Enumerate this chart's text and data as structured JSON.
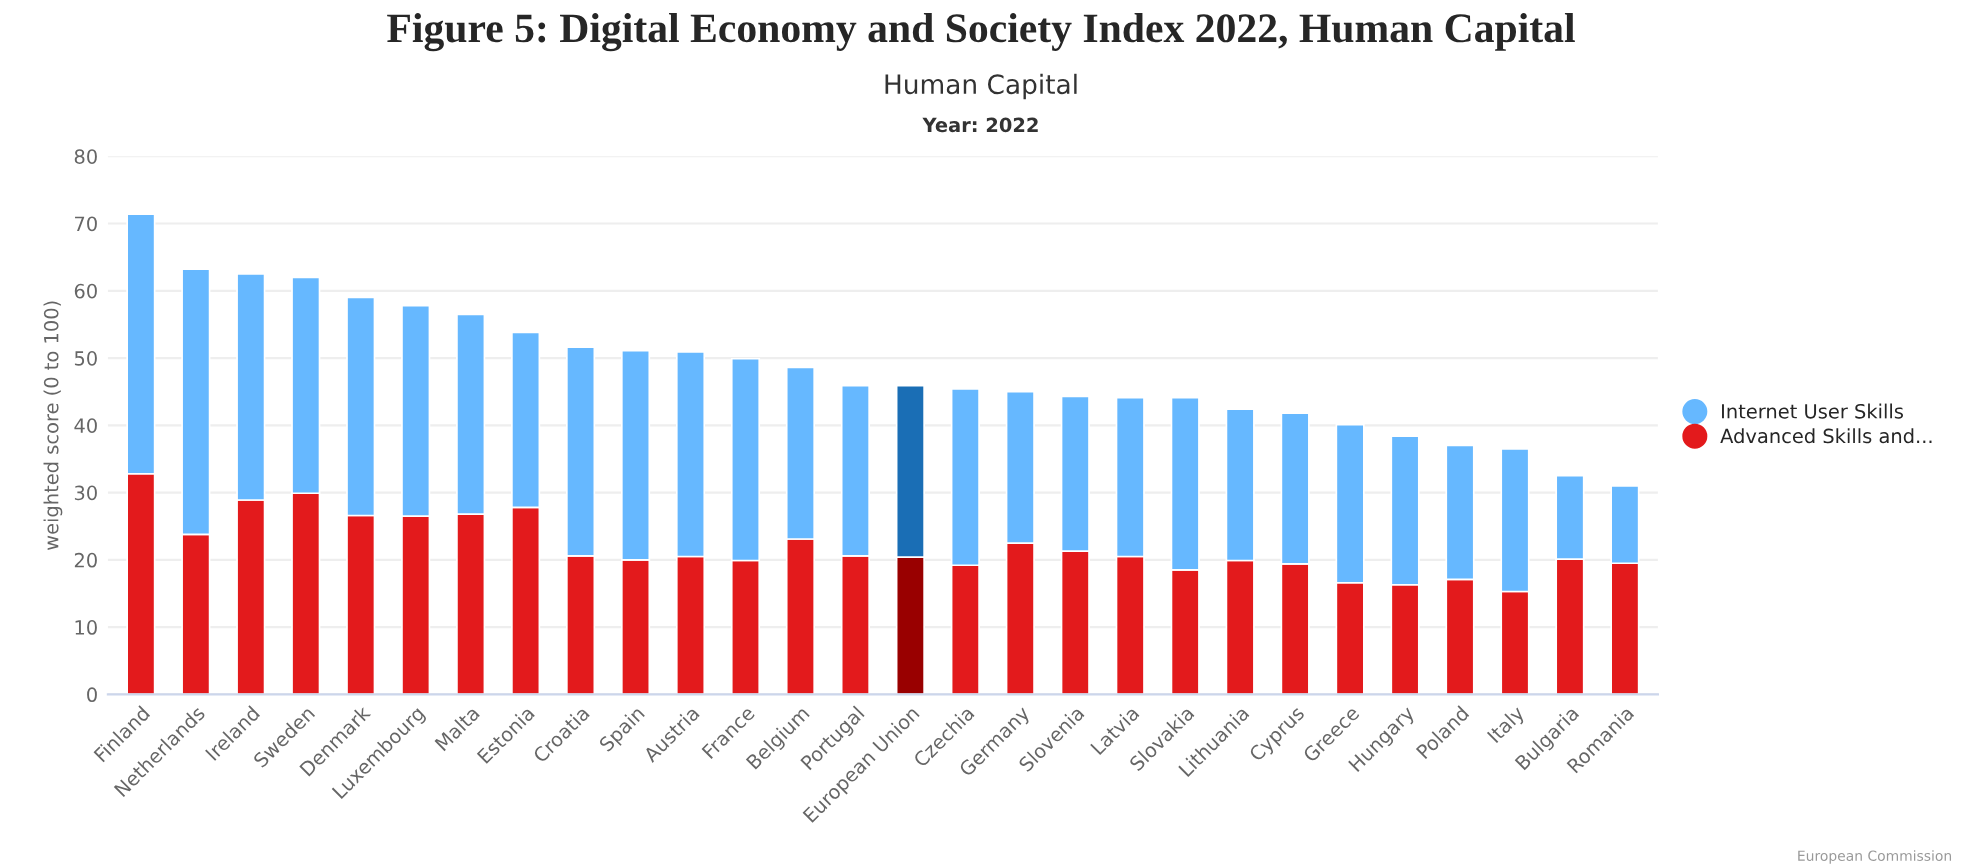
{
  "chart_data": {
    "type": "bar",
    "title": "Figure 5: Digital Economy and Society Index 2022, Human Capital",
    "subtitle": "Human Capital",
    "annotations": [
      "Year: 2022",
      "European Commission"
    ],
    "ylabel": "weighted score (0 to 100)",
    "categories": [
      "Finland",
      "Netherlands",
      "Ireland",
      "Sweden",
      "Denmark",
      "Luxembourg",
      "Malta",
      "Estonia",
      "Croatia",
      "Spain",
      "Austria",
      "France",
      "Belgium",
      "Portugal",
      "European Union",
      "Czechia",
      "Germany",
      "Slovenia",
      "Latvia",
      "Slovakia",
      "Lithuania",
      "Cyprus",
      "Greece",
      "Hungary",
      "Poland",
      "Italy",
      "Bulgaria",
      "Romania"
    ],
    "stacked": true,
    "series": [
      {
        "name": "Advanced Skills and...",
        "color": "#e31a1c",
        "colors": [
          "#e31a1c",
          "#e31a1c",
          "#e31a1c",
          "#e31a1c",
          "#e31a1c",
          "#e31a1c",
          "#e31a1c",
          "#e31a1c",
          "#e31a1c",
          "#e31a1c",
          "#e31a1c",
          "#e31a1c",
          "#e31a1c",
          "#e31a1c",
          "#990000",
          "#e31a1c",
          "#e31a1c",
          "#e31a1c",
          "#e31a1c",
          "#e31a1c",
          "#e31a1c",
          "#e31a1c",
          "#e31a1c",
          "#e31a1c",
          "#e31a1c",
          "#e31a1c",
          "#e31a1c",
          "#e31a1c"
        ],
        "values": [
          32.8,
          23.8,
          28.9,
          29.9,
          26.6,
          26.5,
          26.8,
          27.8,
          20.6,
          20.0,
          20.5,
          19.9,
          23.1,
          20.6,
          20.4,
          19.2,
          22.5,
          21.3,
          20.5,
          18.5,
          19.9,
          19.4,
          16.6,
          16.3,
          17.1,
          15.3,
          20.1,
          19.5
        ]
      },
      {
        "name": "Internet User Skills",
        "color": "#66b8ff",
        "colors": [
          "#66b8ff",
          "#66b8ff",
          "#66b8ff",
          "#66b8ff",
          "#66b8ff",
          "#66b8ff",
          "#66b8ff",
          "#66b8ff",
          "#66b8ff",
          "#66b8ff",
          "#66b8ff",
          "#66b8ff",
          "#66b8ff",
          "#66b8ff",
          "#1a6eb5",
          "#66b8ff",
          "#66b8ff",
          "#66b8ff",
          "#66b8ff",
          "#66b8ff",
          "#66b8ff",
          "#66b8ff",
          "#66b8ff",
          "#66b8ff",
          "#66b8ff",
          "#66b8ff",
          "#66b8ff",
          "#66b8ff"
        ],
        "values": [
          38.6,
          39.4,
          33.6,
          32.1,
          32.4,
          31.3,
          29.7,
          26.0,
          31.0,
          31.1,
          30.4,
          30.0,
          25.5,
          25.3,
          25.5,
          26.2,
          22.5,
          23.0,
          23.6,
          25.6,
          22.5,
          22.4,
          23.5,
          22.1,
          19.9,
          21.2,
          12.4,
          11.5
        ]
      }
    ],
    "ylim": [
      0,
      80
    ],
    "yticks": [
      0,
      10,
      20,
      30,
      40,
      50,
      60,
      70,
      80
    ],
    "grid": "y",
    "legend": "right",
    "marker": "circle"
  }
}
